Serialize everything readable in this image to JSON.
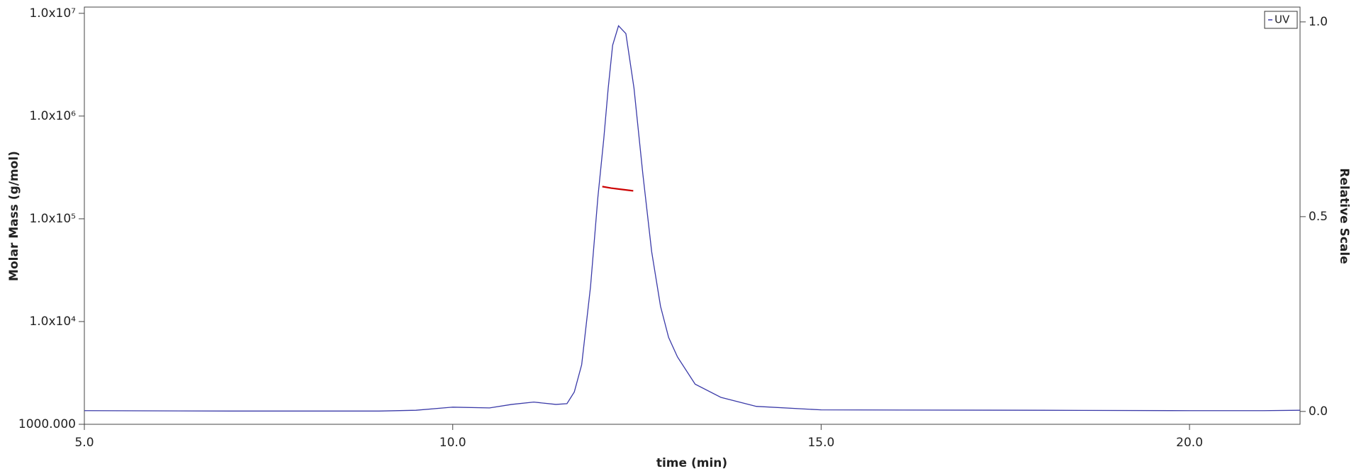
{
  "chart_data": {
    "type": "line",
    "xlabel": "time (min)",
    "ylabel": "Molar Mass (g/mol)",
    "y2label": "Relative Scale",
    "xlim": [
      5.0,
      21.5
    ],
    "ylim": [
      1000,
      11500000
    ],
    "y2lim": [
      -0.033,
      1.038
    ],
    "yscale": "log",
    "legend": "upper right",
    "xticks": [
      {
        "value": 5,
        "label": "5.0"
      },
      {
        "value": 10,
        "label": "10.0"
      },
      {
        "value": 15,
        "label": "15.0"
      },
      {
        "value": 20,
        "label": "20.0"
      }
    ],
    "yticks": [
      {
        "value": 1000,
        "label": "1000.000"
      },
      {
        "value": 10000,
        "label": "1.0x10⁴"
      },
      {
        "value": 100000,
        "label": "1.0x10⁵"
      },
      {
        "value": 1000000,
        "label": "1.0x10⁶"
      },
      {
        "value": 10000000,
        "label": "1.0x10⁷"
      }
    ],
    "y2ticks": [
      {
        "value": 0,
        "label": "0.0"
      },
      {
        "value": 0.5,
        "label": "0.5"
      },
      {
        "value": 1,
        "label": "1.0"
      }
    ],
    "series": [
      {
        "name": "UV",
        "color": "#3a3aa8",
        "axis": "y2",
        "x": [
          5.0,
          7.0,
          9.0,
          9.5,
          10.0,
          10.5,
          10.8,
          11.1,
          11.4,
          11.55,
          11.65,
          11.75,
          11.87,
          11.97,
          12.05,
          12.11,
          12.17,
          12.25,
          12.3,
          12.35,
          12.46,
          12.58,
          12.7,
          12.82,
          12.93,
          13.05,
          13.29,
          13.64,
          14.12,
          15.0,
          18.0,
          20.0,
          21.0,
          21.5
        ],
        "values": [
          0.002,
          0.001,
          0.001,
          0.003,
          0.011,
          0.009,
          0.018,
          0.024,
          0.018,
          0.02,
          0.05,
          0.12,
          0.32,
          0.55,
          0.7,
          0.83,
          0.94,
          0.99,
          0.98,
          0.97,
          0.83,
          0.61,
          0.41,
          0.27,
          0.19,
          0.14,
          0.07,
          0.036,
          0.013,
          0.004,
          0.003,
          0.002,
          0.002,
          0.003
        ]
      },
      {
        "color": "#cc0000",
        "axis": "y",
        "x": [
          12.03,
          12.15,
          12.3,
          12.45
        ],
        "values": [
          206000,
          199000,
          193000,
          187000
        ]
      }
    ]
  }
}
